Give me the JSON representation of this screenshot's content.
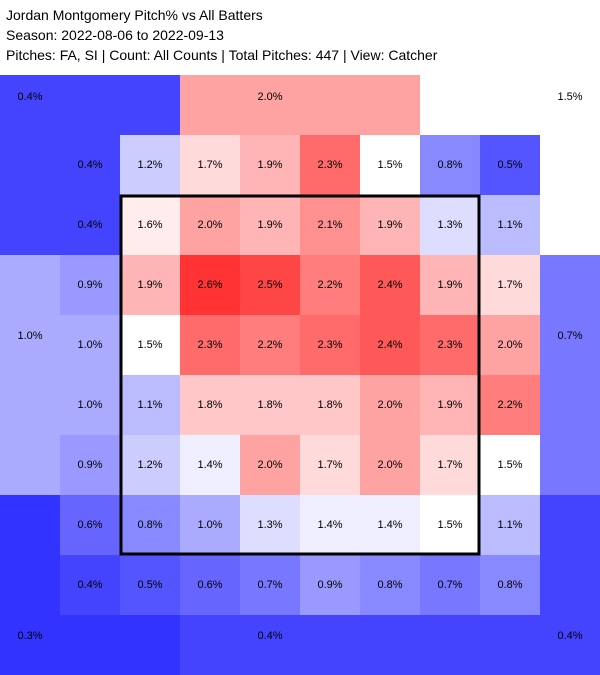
{
  "header": {
    "title": "Jordan Montgomery Pitch% vs All Batters",
    "season": "Season: 2022-08-06 to 2022-09-13",
    "filters": "Pitches: FA, SI | Count: All Counts | Total Pitches: 447 | View: Catcher"
  },
  "chart_data": {
    "type": "heatmap",
    "unit": "%",
    "scale": {
      "min": 0.3,
      "mid": 1.5,
      "max": 2.6,
      "low_color": "#3333ff",
      "mid_color": "#ffffff",
      "high_color": "#ff3333"
    },
    "inner_grid": [
      [
        0.4,
        1.2,
        1.7,
        1.9,
        2.3,
        1.5,
        0.8,
        0.5
      ],
      [
        0.4,
        1.6,
        2.0,
        1.9,
        2.1,
        1.9,
        1.3,
        1.1
      ],
      [
        0.9,
        1.9,
        2.6,
        2.5,
        2.2,
        2.4,
        1.9,
        1.7
      ],
      [
        1.0,
        1.5,
        2.3,
        2.2,
        2.3,
        2.4,
        2.3,
        2.0
      ],
      [
        1.0,
        1.1,
        1.8,
        1.8,
        1.8,
        2.0,
        1.9,
        2.2
      ],
      [
        0.9,
        1.2,
        1.4,
        2.0,
        1.7,
        2.0,
        1.7,
        1.5
      ],
      [
        0.6,
        0.8,
        1.0,
        1.3,
        1.4,
        1.4,
        1.5,
        1.1
      ],
      [
        0.4,
        0.5,
        0.6,
        0.7,
        0.9,
        0.8,
        0.7,
        0.8
      ]
    ],
    "outer_zones": {
      "top_left": 0.4,
      "top": 2.0,
      "top_right": 1.5,
      "left": 1.0,
      "right": 0.7,
      "bottom_left": 0.3,
      "bottom": 0.4,
      "bottom_right": 0.4
    },
    "strike_zone": "inner 6x6"
  }
}
